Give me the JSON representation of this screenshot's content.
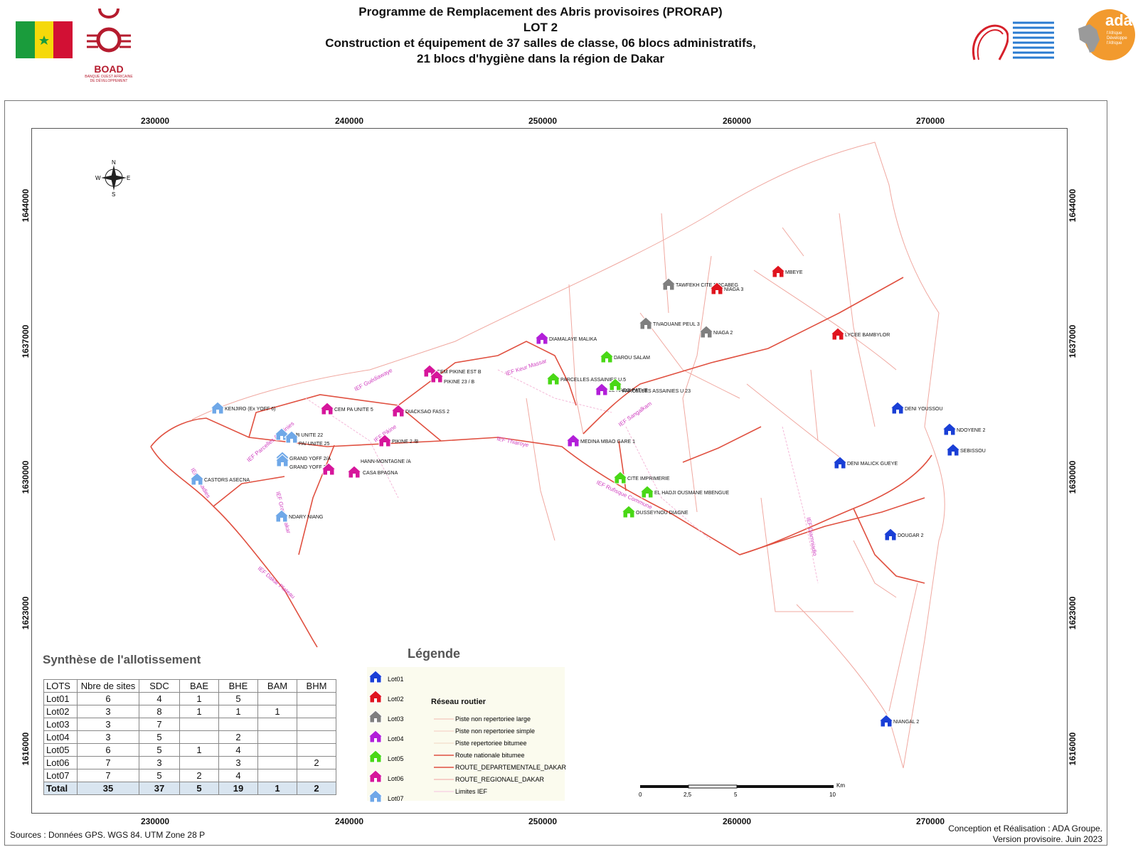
{
  "header": {
    "title_lines": [
      "Programme de Remplacement des Abris provisoires (PRORAP)",
      "LOT 2",
      "Construction et équipement de 37 salles de classe, 06 blocs administratifs,",
      "21 blocs d'hygiène  dans la région de Dakar"
    ],
    "boad_logo_text": "BOAD",
    "boad_logo_subtext": "BANQUE OUEST AFRICAINE DE DÉVELOPPEMENT",
    "ada_logo_text": "ada",
    "ada_logo_subtext": "l'Afrique Développe l'Afrique",
    "flag_colors": [
      "#1a9c3c",
      "#f5d90a",
      "#d21034"
    ]
  },
  "axes": {
    "x_ticks": [
      "230000",
      "240000",
      "250000",
      "260000",
      "270000"
    ],
    "y_ticks": [
      "1644000",
      "1637000",
      "1630000",
      "1623000",
      "1616000"
    ]
  },
  "compass": {
    "n": "N",
    "s": "S",
    "e": "E",
    "w": "W"
  },
  "lot_colors": {
    "Lot01": "#1a3fd6",
    "Lot02": "#e0141e",
    "Lot03": "#7f7f7f",
    "Lot04": "#b21fd9",
    "Lot05": "#49d816",
    "Lot06": "#d6169b",
    "Lot07": "#6fa8e8"
  },
  "sites": [
    {
      "name": "MBEYE",
      "lot": "Lot02"
    },
    {
      "name": "TAWFEKH CITE BOCABEG",
      "lot": "Lot03"
    },
    {
      "name": "NIAGA 3",
      "lot": "Lot02"
    },
    {
      "name": "TIVAOUANE PEUL 3",
      "lot": "Lot03"
    },
    {
      "name": "NIAGA 2",
      "lot": "Lot03"
    },
    {
      "name": "LYCEE  BAMBYLOR",
      "lot": "Lot02"
    },
    {
      "name": "DIAMALAYE MALIKA",
      "lot": "Lot04"
    },
    {
      "name": "DAROU SALAM",
      "lot": "Lot05"
    },
    {
      "name": "CEM PIKINE EST B",
      "lot": "Lot06"
    },
    {
      "name": "PIKINE 23 / B",
      "lot": "Lot06"
    },
    {
      "name": "PARCELLES ASSAINIES U.5",
      "lot": "Lot05"
    },
    {
      "name": "EL HADJI PATHE",
      "lot": "Lot04"
    },
    {
      "name": "PARCELLES ASSAINIES U 23",
      "lot": "Lot05"
    },
    {
      "name": "KENJIRO (Ex YOFF 6)",
      "lot": "Lot07"
    },
    {
      "name": "CEM PA UNITE 5",
      "lot": "Lot06"
    },
    {
      "name": "DIACKSAO FASS 2",
      "lot": "Lot06"
    },
    {
      "name": "DENI  YOUSSOU",
      "lot": "Lot01"
    },
    {
      "name": "NDOYENE 2",
      "lot": "Lot01"
    },
    {
      "name": "PA/B UNITE 22",
      "lot": "Lot07"
    },
    {
      "name": "PA/ UNITE 25",
      "lot": "Lot07"
    },
    {
      "name": "PIKINE 2 /B",
      "lot": "Lot06"
    },
    {
      "name": "MEDINA MBAO GARE 1",
      "lot": "Lot04"
    },
    {
      "name": "SEBISSOU",
      "lot": "Lot01"
    },
    {
      "name": "GRAND YOFF 2/A",
      "lot": "Lot07"
    },
    {
      "name": "GRAND YOFF 2/B",
      "lot": "Lot07"
    },
    {
      "name": "HANN-MONTAGNE /A",
      "lot": "Lot06"
    },
    {
      "name": "CASA BPAGNA",
      "lot": "Lot06"
    },
    {
      "name": "DENI MALICK GUEYE",
      "lot": "Lot01"
    },
    {
      "name": "CASTORS ASECNA",
      "lot": "Lot07"
    },
    {
      "name": "CITE IMPRIMERIE",
      "lot": "Lot05"
    },
    {
      "name": "EL HADJI OUSMANE MBENGUE",
      "lot": "Lot05"
    },
    {
      "name": "OUSSEYNOU DIAGNE",
      "lot": "Lot05"
    },
    {
      "name": "NDARY NIANG",
      "lot": "Lot07"
    },
    {
      "name": "DOUGAR 2",
      "lot": "Lot01"
    },
    {
      "name": "NIANGAL 2",
      "lot": "Lot01"
    }
  ],
  "ief_labels": [
    "IEF Guédiawaye",
    "IEF Keur Massar",
    "IEF Parcelles Assainies",
    "IEF Pikine",
    "IEF Sangalkam",
    "IEF Thiaroye",
    "IEF Almadies",
    "IEF Grand Dakar",
    "IEF Rufisque Commune",
    "IEF Diamniadio",
    "IEF Dakar Plateau"
  ],
  "table": {
    "title": "Synthèse de l'allotissement",
    "headers": [
      "LOTS",
      "Nbre de sites",
      "SDC",
      "BAE",
      "BHE",
      "BAM",
      "BHM"
    ],
    "rows": [
      [
        "Lot01",
        "6",
        "4",
        "1",
        "5",
        "",
        ""
      ],
      [
        "Lot02",
        "3",
        "8",
        "1",
        "1",
        "1",
        ""
      ],
      [
        "Lot03",
        "3",
        "7",
        "",
        "",
        "",
        ""
      ],
      [
        "Lot04",
        "3",
        "5",
        "",
        "2",
        "",
        ""
      ],
      [
        "Lot05",
        "6",
        "5",
        "1",
        "4",
        "",
        ""
      ],
      [
        "Lot06",
        "7",
        "3",
        "",
        "3",
        "",
        "2"
      ],
      [
        "Lot07",
        "7",
        "5",
        "2",
        "4",
        "",
        ""
      ]
    ],
    "total": [
      "Total",
      "35",
      "37",
      "5",
      "19",
      "1",
      "2"
    ]
  },
  "legend": {
    "title": "Légende",
    "lots": [
      "Lot01",
      "Lot02",
      "Lot03",
      "Lot04",
      "Lot05",
      "Lot06",
      "Lot07"
    ],
    "road_title": "Réseau routier",
    "roads": [
      "Piste non repertoriee large",
      "Piste non repertoriee simple",
      "Piste repertoriee bitumee",
      "Route nationale bitumee",
      "ROUTE_DEPARTEMENTALE_DAKAR",
      "ROUTE_REGIONALE_DAKAR",
      "Limites IEF"
    ]
  },
  "scalebar": {
    "unit": "Km",
    "labels": [
      "0",
      "2,5",
      "5",
      "10"
    ]
  },
  "sources": "Sources : Données GPS. WGS 84. UTM Zone 28 P",
  "credits": [
    "Conception et Réalisation : ADA Groupe.",
    "Version provisoire. Juin 2023"
  ]
}
